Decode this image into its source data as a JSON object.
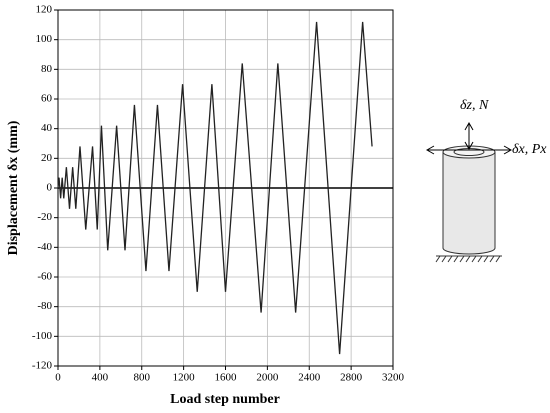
{
  "chart_data": {
    "type": "line",
    "x_label": "Load step number",
    "y_label": "Displacement δx (mm)",
    "annotations": [
      "δz, N",
      "δx, Px"
    ],
    "x": [
      0,
      10,
      25,
      40,
      55,
      80,
      110,
      140,
      170,
      210,
      265,
      330,
      375,
      415,
      475,
      560,
      640,
      730,
      840,
      950,
      1060,
      1190,
      1330,
      1470,
      1600,
      1760,
      1940,
      2100,
      2270,
      2470,
      2690,
      2910,
      3000
    ],
    "series": [
      {
        "color": "#222222",
        "values": [
          0,
          7,
          -7,
          7,
          -7,
          14,
          -14,
          14,
          -14,
          28,
          -28,
          28,
          -28,
          42,
          -42,
          42,
          -42,
          56,
          -56,
          56,
          -56,
          70,
          -70,
          70,
          -70,
          84,
          -84,
          84,
          -84,
          112,
          -112,
          112,
          28
        ]
      }
    ],
    "xlim": [
      0,
      3200
    ],
    "xticks": [
      0,
      400,
      800,
      1200,
      1600,
      2000,
      2400,
      2800,
      3200
    ],
    "ylim": [
      -120,
      120
    ],
    "yticks": [
      -120,
      -100,
      -80,
      -60,
      -40,
      -20,
      0,
      20,
      40,
      60,
      80,
      100,
      120
    ],
    "grid": true
  }
}
